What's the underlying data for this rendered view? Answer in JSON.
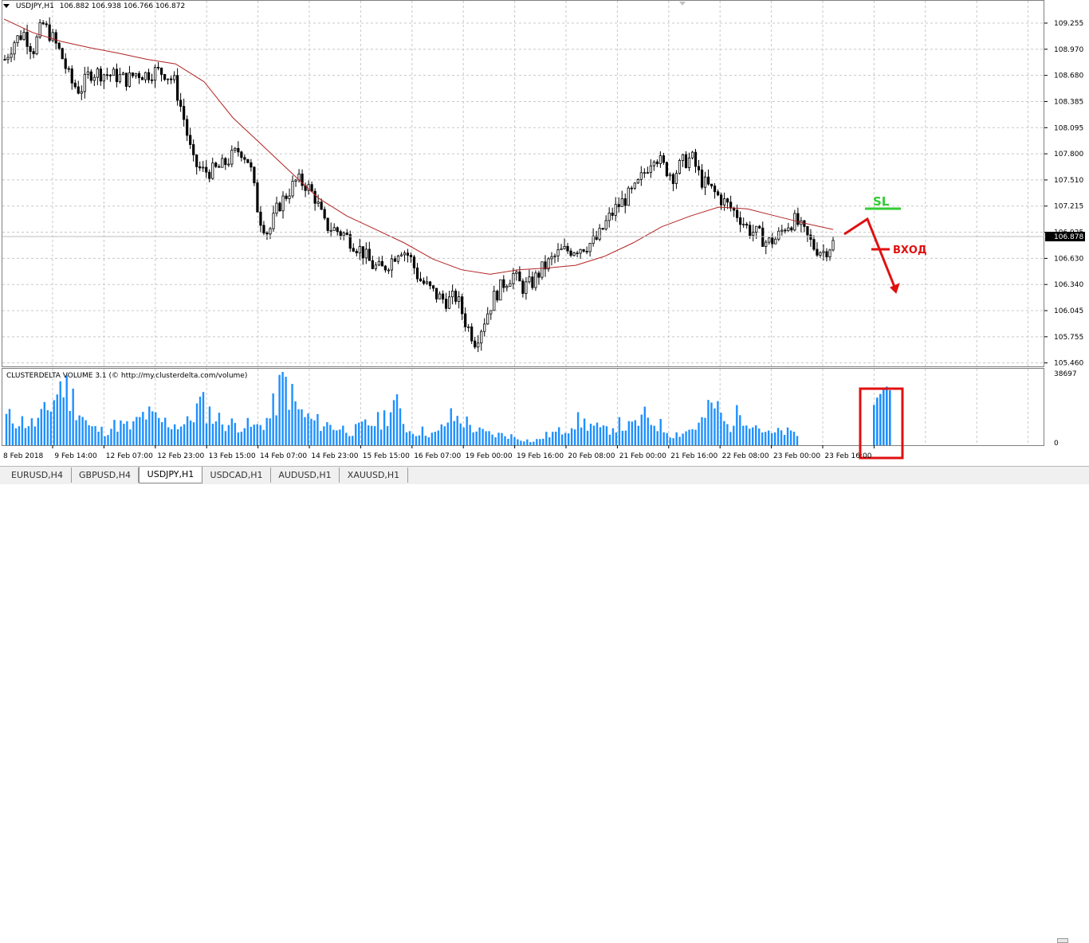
{
  "header": {
    "symbol": "USDJPY,H1",
    "ohlc": "106.882 106.938 106.766 106.872"
  },
  "price_axis": {
    "ticks": [
      "109.255",
      "108.970",
      "108.680",
      "108.385",
      "108.095",
      "107.800",
      "107.510",
      "107.215",
      "106.925",
      "106.630",
      "106.340",
      "106.045",
      "105.755",
      "105.460"
    ],
    "current_price": "106.878"
  },
  "annotations": {
    "stop_loss": "SL",
    "entry": "ВХОД"
  },
  "indicator": {
    "label": "CLUSTERDELTA VOLUME 3.1 (© http://my.clusterdelta.com/volume)",
    "axis_max": "38697",
    "axis_min": "0"
  },
  "time_axis": [
    "8 Feb 2018",
    "9 Feb 14:00",
    "12 Feb 07:00",
    "12 Feb 23:00",
    "13 Feb 15:00",
    "14 Feb 07:00",
    "14 Feb 23:00",
    "15 Feb 15:00",
    "16 Feb 07:00",
    "19 Feb 00:00",
    "19 Feb 16:00",
    "20 Feb 08:00",
    "21 Feb 00:00",
    "21 Feb 16:00",
    "22 Feb 08:00",
    "23 Feb 00:00",
    "23 Feb 16:00"
  ],
  "tabs": [
    {
      "label": "EURUSD,H4",
      "active": false
    },
    {
      "label": "GBPUSD,H4",
      "active": false
    },
    {
      "label": "USDJPY,H1",
      "active": true
    },
    {
      "label": "USDCAD,H1",
      "active": false
    },
    {
      "label": "AUDUSD,H1",
      "active": false
    },
    {
      "label": "XAUUSD,H1",
      "active": false
    }
  ],
  "colors": {
    "candle": "#000000",
    "moving_average": "#b22222",
    "volume_bar": "#1e90ff",
    "sl_line": "#33cc33",
    "entry_arrow": "#e01010",
    "highlight_box": "#e01010",
    "grid": "#c8c8c8"
  },
  "chart_data": {
    "type": "candlestick",
    "symbol": "USDJPY",
    "timeframe": "H1",
    "ylim": [
      105.46,
      109.4
    ],
    "close_path": [
      108.85,
      109.05,
      109.15,
      108.95,
      109.25,
      109.1,
      108.9,
      108.6,
      108.5,
      108.7,
      108.7,
      108.68,
      108.66,
      108.62,
      108.7,
      108.68,
      108.72,
      108.7,
      108.6,
      108.2,
      107.7,
      107.6,
      107.6,
      107.65,
      107.75,
      107.85,
      107.7,
      107.1,
      106.9,
      107.2,
      107.35,
      107.5,
      107.45,
      107.3,
      107.0,
      106.95,
      106.9,
      106.8,
      106.7,
      106.55,
      106.5,
      106.6,
      106.75,
      106.65,
      106.4,
      106.3,
      106.2,
      106.15,
      106.2,
      105.9,
      105.7,
      105.95,
      106.2,
      106.35,
      106.45,
      106.3,
      106.35,
      106.5,
      106.6,
      106.7,
      106.72,
      106.75,
      106.78,
      106.85,
      107.05,
      107.2,
      107.3,
      107.4,
      107.6,
      107.8,
      107.65,
      107.55,
      107.7,
      107.75,
      107.5,
      107.4,
      107.3,
      107.2,
      107.1,
      106.95,
      106.9,
      106.8,
      106.85,
      107.0,
      107.05,
      106.9,
      106.75,
      106.7,
      106.8
    ],
    "moving_average": [
      109.3,
      109.15,
      109.05,
      108.98,
      108.92,
      108.85,
      108.8,
      108.6,
      108.2,
      107.9,
      107.6,
      107.3,
      107.1,
      106.95,
      106.8,
      106.62,
      106.5,
      106.45,
      106.5,
      106.52,
      106.55,
      106.65,
      106.8,
      106.98,
      107.1,
      107.2,
      107.18,
      107.1,
      107.02,
      106.95
    ],
    "volume_relative": [
      0.4,
      0.35,
      0.3,
      0.5,
      0.9,
      0.6,
      0.25,
      0.2,
      0.3,
      0.25,
      0.45,
      0.35,
      0.3,
      0.3,
      0.6,
      0.4,
      0.3,
      0.3,
      0.25,
      0.4,
      0.95,
      0.5,
      0.35,
      0.3,
      0.25,
      0.2,
      0.3,
      0.35,
      0.6,
      0.2,
      0.2,
      0.15,
      0.4,
      0.35,
      0.2,
      0.15,
      0.15,
      0.1,
      0.05,
      0.15,
      0.2,
      0.35,
      0.3,
      0.2,
      0.3,
      0.25,
      0.4,
      0.3,
      0.15,
      0.2,
      0.3,
      0.6,
      0.25,
      0.5,
      0.3,
      0.15,
      0.2,
      0.15
    ],
    "highlighted_volume_relative": [
      0.55,
      0.65,
      0.7,
      0.78,
      0.8,
      0.75
    ]
  }
}
